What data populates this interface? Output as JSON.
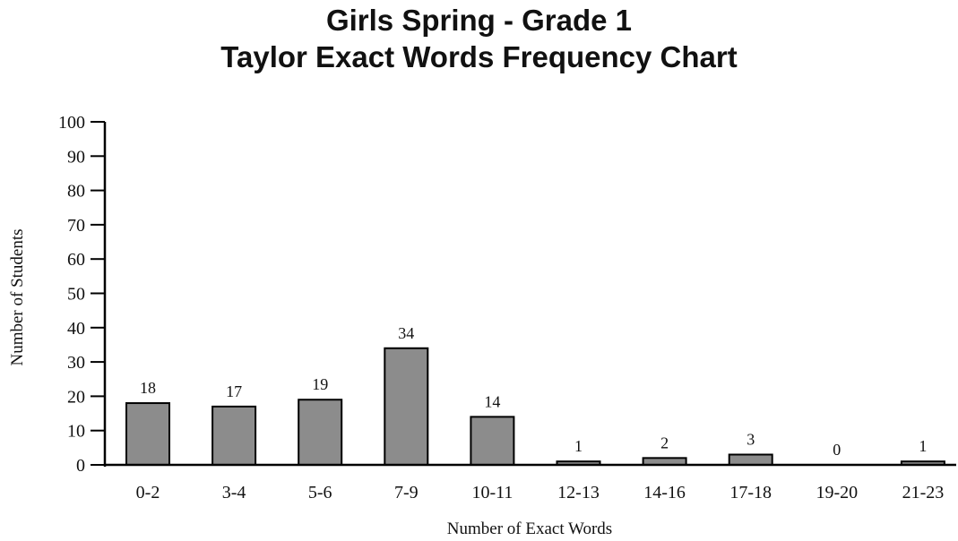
{
  "chart_data": {
    "type": "bar",
    "title": "Girls Spring - Grade 1",
    "subtitle": "Taylor Exact Words Frequency Chart",
    "xlabel": "Number of Exact Words",
    "ylabel": "Number of Students",
    "categories": [
      "0-2",
      "3-4",
      "5-6",
      "7-9",
      "10-11",
      "12-13",
      "14-16",
      "17-18",
      "19-20",
      "21-23"
    ],
    "values": [
      18,
      17,
      19,
      34,
      14,
      1,
      2,
      3,
      0,
      1
    ],
    "ylim": [
      0,
      100
    ],
    "yticks": [
      0,
      10,
      20,
      30,
      40,
      50,
      60,
      70,
      80,
      90,
      100
    ],
    "grid": false,
    "legend": "none",
    "bar_color": "#8c8c8c",
    "bar_edge_color": "#000000"
  }
}
